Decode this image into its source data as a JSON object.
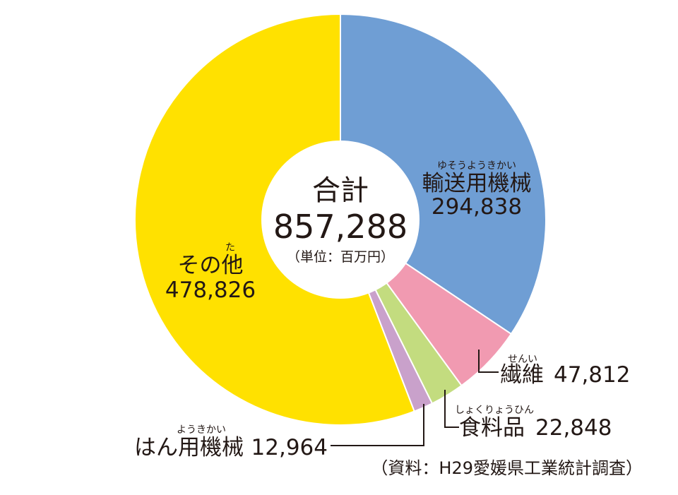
{
  "chart_data": {
    "type": "pie",
    "center_label": {
      "title": "合計",
      "total": "857,288",
      "unit": "（単位：百万円）"
    },
    "slices": [
      {
        "label": "輸送用機械",
        "reading": "ゆそうようきかい",
        "value": 294838,
        "value_text": "294,838",
        "color": "#6f9ed4"
      },
      {
        "label": "繊維",
        "reading": "せんい",
        "value": 47812,
        "value_text": "47,812",
        "color": "#f19ab1"
      },
      {
        "label": "食料品",
        "reading": "しょくりょうひん",
        "value": 22848,
        "value_text": "22,848",
        "color": "#c3dc7f"
      },
      {
        "label": "はん用機械",
        "reading": "ようきかい",
        "value": 12964,
        "value_text": "12,964",
        "color": "#c9a1cb"
      },
      {
        "label": "その他",
        "reading": "た",
        "value": 478826,
        "value_text": "478,826",
        "color": "#ffe100"
      }
    ],
    "source": "（資料：H29愛媛県工業統計調査）"
  }
}
